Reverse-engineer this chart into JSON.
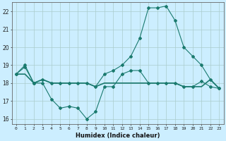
{
  "xlabel": "Humidex (Indice chaleur)",
  "x": [
    0,
    1,
    2,
    3,
    4,
    5,
    6,
    7,
    8,
    9,
    10,
    11,
    12,
    13,
    14,
    15,
    16,
    17,
    18,
    19,
    20,
    21,
    22,
    23
  ],
  "line1_y": [
    18.5,
    18.9,
    18.0,
    18.0,
    17.1,
    16.6,
    16.7,
    16.6,
    16.0,
    16.4,
    17.8,
    17.8,
    18.5,
    18.7,
    18.7,
    18.0,
    18.0,
    18.0,
    18.0,
    17.8,
    17.8,
    18.1,
    17.8,
    17.7
  ],
  "line2_y": [
    18.5,
    18.5,
    18.0,
    18.2,
    18.0,
    18.0,
    18.0,
    18.0,
    18.0,
    17.8,
    18.0,
    18.0,
    18.0,
    18.0,
    18.0,
    18.0,
    18.0,
    18.0,
    18.0,
    17.8,
    17.8,
    17.8,
    18.2,
    17.7
  ],
  "line3_y": [
    18.5,
    19.0,
    18.0,
    18.2,
    18.0,
    18.0,
    18.0,
    18.0,
    18.0,
    17.8,
    18.5,
    18.7,
    19.0,
    19.5,
    20.5,
    22.2,
    22.2,
    22.3,
    21.5,
    20.0,
    19.5,
    19.0,
    18.2,
    17.7
  ],
  "line_color": "#1a7a6e",
  "bg_color": "#cceeff",
  "grid_color": "#aacccc",
  "ylim": [
    15.7,
    22.5
  ],
  "xlim": [
    -0.5,
    23.5
  ],
  "yticks": [
    16,
    17,
    18,
    19,
    20,
    21,
    22
  ],
  "xticks": [
    0,
    1,
    2,
    3,
    4,
    5,
    6,
    7,
    8,
    9,
    10,
    11,
    12,
    13,
    14,
    15,
    16,
    17,
    18,
    19,
    20,
    21,
    22,
    23
  ]
}
